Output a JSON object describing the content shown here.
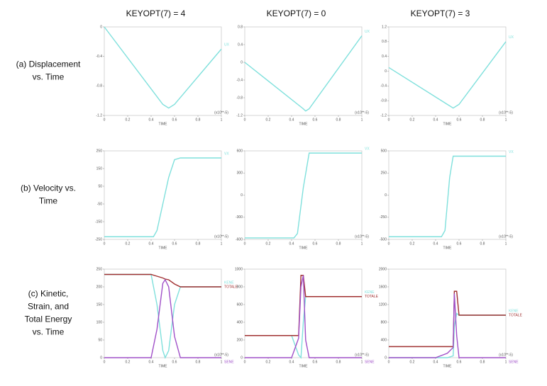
{
  "columns": [
    "KEYOPT(7) = 4",
    "KEYOPT(7) =  0",
    "KEYOPT(7) = 3"
  ],
  "rows": [
    [
      "(a) Displacement",
      "vs. Time"
    ],
    [
      "(b) Velocity vs.",
      "Time"
    ],
    [
      "(c) Kinetic,",
      "Strain, and",
      "Total Energy",
      "vs. Time"
    ]
  ],
  "chart_data": [
    {
      "type": "line",
      "xlabel": "TIME",
      "x_unit": "(x10**-5)",
      "xlim": [
        0,
        1
      ],
      "xticks": [
        0,
        0.2,
        0.4,
        0.6,
        0.8,
        1
      ],
      "ylim": [
        -1.2,
        0
      ],
      "yticks": [
        -1.2,
        -0.8,
        -0.4,
        0
      ],
      "x": [
        0,
        0.5,
        0.55,
        0.6,
        1
      ],
      "series": [
        {
          "name": "UX",
          "color": "#7fe0dc",
          "values": [
            0,
            -1.05,
            -1.1,
            -1.05,
            -0.3
          ]
        }
      ]
    },
    {
      "type": "line",
      "xlabel": "TIME",
      "x_unit": "(x10**-5)",
      "xlim": [
        0,
        1
      ],
      "xticks": [
        0,
        0.2,
        0.4,
        0.6,
        0.8,
        1
      ],
      "ylim": [
        -1.2,
        0.8
      ],
      "yticks": [
        -1.2,
        -0.8,
        -0.4,
        0,
        0.4,
        0.8
      ],
      "x": [
        0,
        0.5,
        0.52,
        0.55,
        1
      ],
      "series": [
        {
          "name": "UX",
          "color": "#7fe0dc",
          "values": [
            0,
            -1.05,
            -1.1,
            -1.05,
            0.6
          ]
        }
      ]
    },
    {
      "type": "line",
      "xlabel": "TIME",
      "x_unit": "(x10**-5)",
      "xlim": [
        0,
        1
      ],
      "xticks": [
        0,
        0.2,
        0.4,
        0.6,
        0.8,
        1
      ],
      "ylim": [
        -1.2,
        1.2
      ],
      "yticks": [
        -1.2,
        -0.8,
        -0.4,
        0,
        0.4,
        0.8,
        1.2
      ],
      "x": [
        0,
        0.5,
        0.55,
        0.6,
        1
      ],
      "series": [
        {
          "name": "UX",
          "color": "#7fe0dc",
          "values": [
            0.1,
            -0.9,
            -1,
            -0.9,
            0.8
          ]
        }
      ]
    },
    {
      "type": "line",
      "xlabel": "TIME",
      "x_unit": "(x10**-5)",
      "xlim": [
        0,
        1
      ],
      "xticks": [
        0,
        0.2,
        0.4,
        0.6,
        0.8,
        1
      ],
      "ylim": [
        -250,
        250
      ],
      "yticks": [
        -250,
        -150,
        -50,
        50,
        150,
        250
      ],
      "x": [
        0,
        0.42,
        0.45,
        0.55,
        0.6,
        0.65,
        1
      ],
      "series": [
        {
          "name": "VX",
          "color": "#7fe0dc",
          "values": [
            -235,
            -235,
            -200,
            100,
            200,
            210,
            210
          ]
        }
      ]
    },
    {
      "type": "line",
      "xlabel": "TIME",
      "x_unit": "(x10**-5)",
      "xlim": [
        0,
        1
      ],
      "xticks": [
        0,
        0.2,
        0.4,
        0.6,
        0.8,
        1
      ],
      "ylim": [
        -600,
        600
      ],
      "yticks": [
        -600,
        -300,
        0,
        300,
        600
      ],
      "x": [
        0,
        0.42,
        0.45,
        0.5,
        0.55,
        1
      ],
      "series": [
        {
          "name": "VX",
          "color": "#7fe0dc",
          "values": [
            -580,
            -580,
            -520,
            100,
            570,
            570
          ]
        }
      ]
    },
    {
      "type": "line",
      "xlabel": "TIME",
      "x_unit": "(x10**-5)",
      "xlim": [
        0,
        1
      ],
      "xticks": [
        0,
        0.2,
        0.4,
        0.6,
        0.8,
        1
      ],
      "ylim": [
        -500,
        500
      ],
      "yticks": [
        -500,
        -250,
        0,
        250,
        500
      ],
      "x": [
        0,
        0.45,
        0.48,
        0.52,
        0.55,
        1
      ],
      "series": [
        {
          "name": "VX",
          "color": "#7fe0dc",
          "values": [
            -470,
            -470,
            -400,
            200,
            440,
            440
          ]
        }
      ]
    },
    {
      "type": "line",
      "xlabel": "TIME",
      "x_unit": "(x10**-5)",
      "xlim": [
        0,
        1
      ],
      "xticks": [
        0,
        0.2,
        0.4,
        0.6,
        0.8,
        1
      ],
      "ylim": [
        0,
        250
      ],
      "yticks": [
        0,
        50,
        100,
        150,
        200,
        250
      ],
      "x": [
        0,
        0.4,
        0.45,
        0.5,
        0.52,
        0.55,
        0.6,
        0.65,
        1
      ],
      "series": [
        {
          "name": "KENE",
          "color": "#7fe0dc",
          "values": [
            235,
            235,
            150,
            20,
            0,
            20,
            150,
            200,
            200
          ]
        },
        {
          "name": "TOTALE",
          "color": "#a03030",
          "values": [
            235,
            235,
            230,
            225,
            222,
            220,
            208,
            200,
            200
          ]
        },
        {
          "name": "SENE",
          "color": "#a050c8",
          "values": [
            0,
            0,
            80,
            210,
            220,
            200,
            60,
            0,
            0
          ]
        }
      ]
    },
    {
      "type": "line",
      "xlabel": "TIME",
      "x_unit": "(x10**-5)",
      "xlim": [
        0,
        1
      ],
      "xticks": [
        0,
        0.2,
        0.4,
        0.6,
        0.8,
        1
      ],
      "ylim": [
        0,
        1000
      ],
      "yticks": [
        0,
        200,
        400,
        600,
        800,
        1000
      ],
      "x": [
        0,
        0.4,
        0.46,
        0.48,
        0.5,
        0.52,
        0.55,
        1
      ],
      "series": [
        {
          "name": "KENE",
          "color": "#7fe0dc",
          "values": [
            250,
            250,
            30,
            0,
            400,
            690,
            690,
            690
          ]
        },
        {
          "name": "TOTALE",
          "color": "#a03030",
          "values": [
            250,
            250,
            250,
            930,
            930,
            690,
            690,
            690
          ]
        },
        {
          "name": "SENE",
          "color": "#a050c8",
          "values": [
            0,
            0,
            220,
            800,
            930,
            200,
            0,
            0
          ]
        }
      ]
    },
    {
      "type": "line",
      "xlabel": "TIME",
      "x_unit": "(x10**-5)",
      "xlim": [
        0,
        1
      ],
      "xticks": [
        0,
        0.2,
        0.4,
        0.6,
        0.8,
        1
      ],
      "ylim": [
        0,
        2000
      ],
      "yticks": [
        0,
        400,
        800,
        1200,
        1600,
        2000
      ],
      "x": [
        0,
        0.4,
        0.5,
        0.55,
        0.56,
        0.58,
        0.6,
        1
      ],
      "series": [
        {
          "name": "KENE",
          "color": "#7fe0dc",
          "values": [
            0,
            0,
            0,
            40,
            700,
            1000,
            960,
            960
          ]
        },
        {
          "name": "TOTALE",
          "color": "#a03030",
          "values": [
            250,
            250,
            250,
            250,
            1500,
            1500,
            960,
            960
          ]
        },
        {
          "name": "SENE",
          "color": "#a050c8",
          "values": [
            0,
            0,
            100,
            230,
            1450,
            500,
            0,
            0
          ]
        }
      ]
    }
  ]
}
